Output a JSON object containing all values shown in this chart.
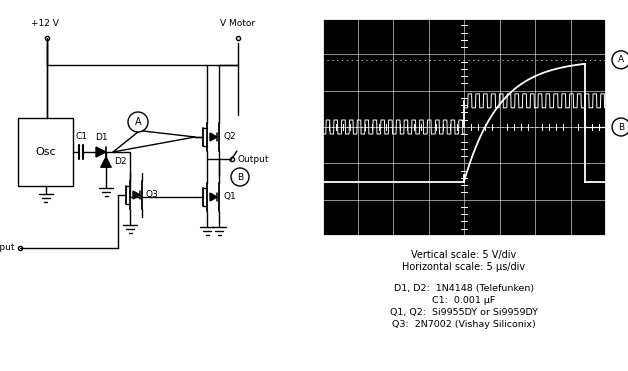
{
  "fig_width": 6.28,
  "fig_height": 3.71,
  "bg_color": "#ffffff",
  "vscale": "Vertical scale: 5 V/div",
  "hscale": "Horizontal scale: 5 μs/div",
  "parts": [
    "D1, D2:  1N4148 (Telefunken)",
    "C1:  0.001 μF",
    "Q1, Q2:  Si9955DY or Si9959DY",
    "Q3:  2N7002 (Vishay Siliconix)"
  ]
}
